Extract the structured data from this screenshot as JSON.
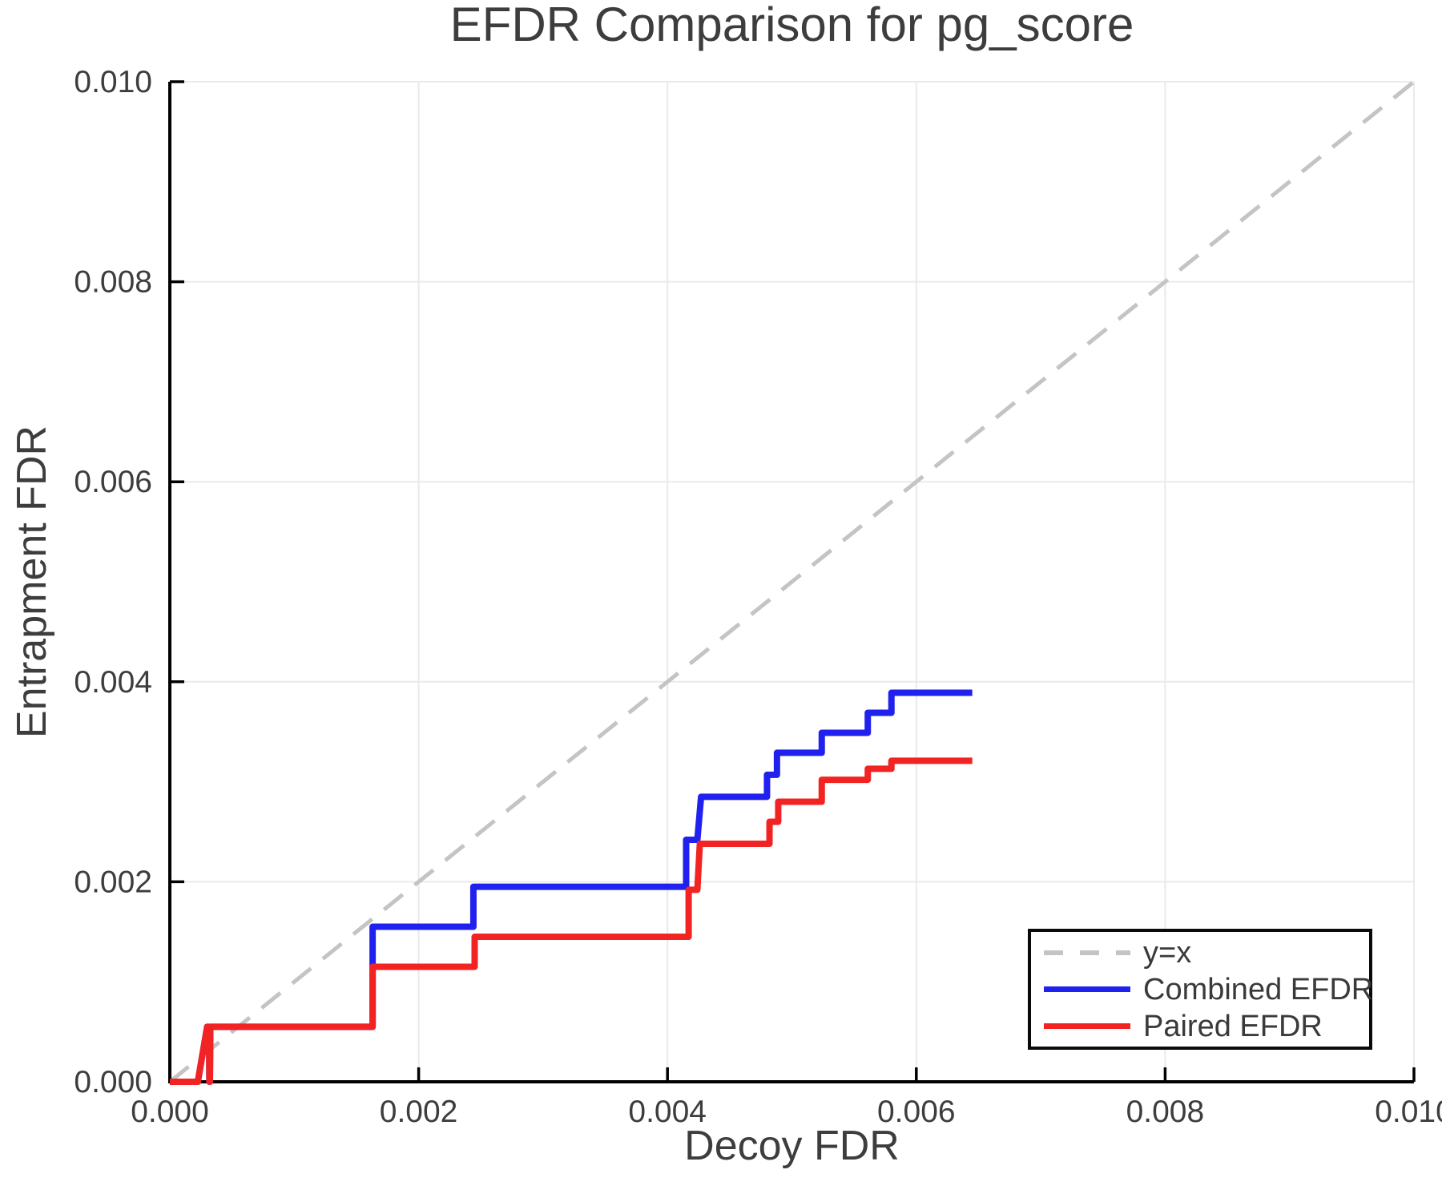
{
  "chart_data": {
    "type": "line",
    "title": "EFDR Comparison for pg_score",
    "xlabel": "Decoy FDR",
    "ylabel": "Entrapment FDR",
    "xlim": [
      0,
      0.01
    ],
    "ylim": [
      0,
      0.01
    ],
    "x_ticks": [
      0,
      0.002,
      0.004,
      0.006,
      0.008,
      0.01
    ],
    "x_tick_labels": [
      "0.000",
      "0.002",
      "0.004",
      "0.006",
      "0.008",
      "0.010"
    ],
    "y_ticks": [
      0,
      0.002,
      0.004,
      0.006,
      0.008,
      0.01
    ],
    "y_tick_labels": [
      "0.000",
      "0.002",
      "0.004",
      "0.006",
      "0.008",
      "0.010"
    ],
    "grid": true,
    "grid_color": "#eaeaea",
    "axis_color": "#000000",
    "text_color": "#3d3d3d",
    "legend_position": "lower right",
    "reference_line": {
      "label": "y=x",
      "style": "dashed",
      "color": "#c4c4c4",
      "from": [
        0,
        0
      ],
      "to": [
        0.01,
        0.01
      ]
    },
    "series": [
      {
        "name": "Combined EFDR",
        "color": "#2121ef",
        "points": [
          [
            0,
            0
          ],
          [
            0.000225,
            0
          ],
          [
            0.0003,
            0.00055
          ],
          [
            0.000315,
            0.00055
          ],
          [
            0.000318,
            0
          ],
          [
            0.000322,
            0
          ],
          [
            0.000325,
            0.00055
          ],
          [
            0.00163,
            0.00055
          ],
          [
            0.00163,
            0.00155
          ],
          [
            0.00244,
            0.00155
          ],
          [
            0.00244,
            0.00195
          ],
          [
            0.00415,
            0.00195
          ],
          [
            0.00415,
            0.00242
          ],
          [
            0.00424,
            0.00242
          ],
          [
            0.00427,
            0.00285
          ],
          [
            0.0048,
            0.00285
          ],
          [
            0.0048,
            0.00307
          ],
          [
            0.00488,
            0.00307
          ],
          [
            0.00488,
            0.00329
          ],
          [
            0.00524,
            0.00329
          ],
          [
            0.00524,
            0.00349
          ],
          [
            0.00561,
            0.00349
          ],
          [
            0.00561,
            0.00369
          ],
          [
            0.0058,
            0.00369
          ],
          [
            0.0058,
            0.00389
          ],
          [
            0.00645,
            0.00389
          ]
        ]
      },
      {
        "name": "Paired EFDR",
        "color": "#f22323",
        "points": [
          [
            0,
            0
          ],
          [
            0.000225,
            0
          ],
          [
            0.0003,
            0.00055
          ],
          [
            0.000315,
            0.00055
          ],
          [
            0.000318,
            0
          ],
          [
            0.000322,
            0
          ],
          [
            0.000325,
            0.00055
          ],
          [
            0.00163,
            0.00055
          ],
          [
            0.00163,
            0.00115
          ],
          [
            0.00245,
            0.00115
          ],
          [
            0.00245,
            0.00145
          ],
          [
            0.00417,
            0.00145
          ],
          [
            0.00417,
            0.00192
          ],
          [
            0.00424,
            0.00192
          ],
          [
            0.00426,
            0.00238
          ],
          [
            0.00482,
            0.00238
          ],
          [
            0.00482,
            0.0026
          ],
          [
            0.00489,
            0.0026
          ],
          [
            0.00489,
            0.0028
          ],
          [
            0.00524,
            0.0028
          ],
          [
            0.00524,
            0.00302
          ],
          [
            0.00561,
            0.00302
          ],
          [
            0.00561,
            0.00313
          ],
          [
            0.0058,
            0.00313
          ],
          [
            0.0058,
            0.00321
          ],
          [
            0.00645,
            0.00321
          ]
        ]
      }
    ],
    "legend": {
      "items": [
        {
          "label": "y=x"
        },
        {
          "label": "Combined EFDR"
        },
        {
          "label": "Paired EFDR"
        }
      ]
    }
  }
}
